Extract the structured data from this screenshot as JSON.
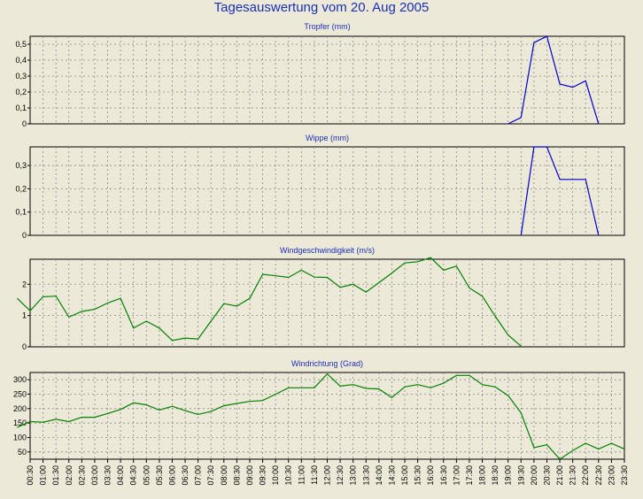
{
  "title": "Tagesauswertung vom 20. Aug 2005",
  "chart_data": [
    {
      "type": "line",
      "title": "Tropfer (mm)",
      "ylim": [
        0,
        0.55
      ],
      "yticks": [
        0,
        0.1,
        0.2,
        0.3,
        0.4,
        0.5
      ],
      "ytick_labels": [
        "0",
        "0,1",
        "0,2",
        "0,3",
        "0,4",
        "0,5"
      ],
      "grid": true,
      "line_color": "#0000CC",
      "series": [
        {
          "points": [
            [
              19.0,
              0
            ],
            [
              19.5,
              0.04
            ],
            [
              20.0,
              0.51
            ],
            [
              20.5,
              0.55
            ],
            [
              21.0,
              0.25
            ],
            [
              21.5,
              0.23
            ],
            [
              22.0,
              0.27
            ],
            [
              22.5,
              0
            ]
          ]
        }
      ]
    },
    {
      "type": "line",
      "title": "Wippe (mm)",
      "ylim": [
        0,
        0.38
      ],
      "yticks": [
        0,
        0.1,
        0.2,
        0.3
      ],
      "ytick_labels": [
        "0",
        "0,1",
        "0,2",
        "0,3"
      ],
      "grid": true,
      "line_color": "#0000CC",
      "series": [
        {
          "points": [
            [
              19.5,
              0
            ],
            [
              20.0,
              0.38
            ],
            [
              20.5,
              0.38
            ],
            [
              21.0,
              0.24
            ],
            [
              21.5,
              0.24
            ],
            [
              22.0,
              0.24
            ],
            [
              22.5,
              0
            ]
          ]
        }
      ]
    },
    {
      "type": "line",
      "title": "Windgeschwindigkeit (m/s)",
      "ylim": [
        0,
        2.8
      ],
      "yticks": [
        0,
        1,
        2
      ],
      "ytick_labels": [
        "0",
        "1",
        "2"
      ],
      "grid": true,
      "line_color": "#008000",
      "series": [
        {
          "points": [
            [
              0.0,
              1.55
            ],
            [
              0.5,
              1.15
            ],
            [
              1.0,
              1.6
            ],
            [
              1.5,
              1.62
            ],
            [
              2.0,
              0.95
            ],
            [
              2.5,
              1.13
            ],
            [
              3.0,
              1.2
            ],
            [
              3.5,
              1.4
            ],
            [
              4.0,
              1.55
            ],
            [
              4.5,
              0.6
            ],
            [
              5.0,
              0.82
            ],
            [
              5.5,
              0.6
            ],
            [
              6.0,
              0.2
            ],
            [
              6.5,
              0.28
            ],
            [
              7.0,
              0.25
            ],
            [
              7.5,
              0.82
            ],
            [
              8.0,
              1.38
            ],
            [
              8.5,
              1.3
            ],
            [
              9.0,
              1.55
            ],
            [
              9.5,
              2.32
            ],
            [
              10.0,
              2.27
            ],
            [
              10.5,
              2.22
            ],
            [
              11.0,
              2.45
            ],
            [
              11.5,
              2.23
            ],
            [
              12.0,
              2.22
            ],
            [
              12.5,
              1.9
            ],
            [
              13.0,
              2.0
            ],
            [
              13.5,
              1.75
            ],
            [
              14.0,
              2.05
            ],
            [
              14.5,
              2.36
            ],
            [
              15.0,
              2.68
            ],
            [
              15.5,
              2.72
            ],
            [
              16.0,
              2.85
            ],
            [
              16.5,
              2.45
            ],
            [
              17.0,
              2.58
            ],
            [
              17.5,
              1.88
            ],
            [
              18.0,
              1.62
            ],
            [
              18.5,
              0.98
            ],
            [
              19.0,
              0.38
            ],
            [
              19.5,
              0.02
            ]
          ]
        }
      ]
    },
    {
      "type": "line",
      "title": "Windrichtung (Grad)",
      "ylim": [
        25,
        325
      ],
      "yticks": [
        50,
        100,
        150,
        200,
        250,
        300
      ],
      "ytick_labels": [
        "50",
        "100",
        "150",
        "200",
        "250",
        "300"
      ],
      "grid": true,
      "line_color": "#008000",
      "series": [
        {
          "points": [
            [
              0.0,
              135
            ],
            [
              0.5,
              155
            ],
            [
              1.0,
              153
            ],
            [
              1.5,
              163
            ],
            [
              2.0,
              155
            ],
            [
              2.5,
              170
            ],
            [
              3.0,
              170
            ],
            [
              3.5,
              183
            ],
            [
              4.0,
              197
            ],
            [
              4.5,
              220
            ],
            [
              5.0,
              213
            ],
            [
              5.5,
              195
            ],
            [
              6.0,
              208
            ],
            [
              6.5,
              193
            ],
            [
              7.0,
              180
            ],
            [
              7.5,
              190
            ],
            [
              8.0,
              210
            ],
            [
              8.5,
              218
            ],
            [
              9.0,
              225
            ],
            [
              9.5,
              228
            ],
            [
              10.0,
              250
            ],
            [
              10.5,
              272
            ],
            [
              11.0,
              272
            ],
            [
              11.5,
              272
            ],
            [
              12.0,
              320
            ],
            [
              12.5,
              278
            ],
            [
              13.0,
              283
            ],
            [
              13.5,
              270
            ],
            [
              14.0,
              268
            ],
            [
              14.5,
              238
            ],
            [
              15.0,
              275
            ],
            [
              15.5,
              283
            ],
            [
              16.0,
              272
            ],
            [
              16.5,
              288
            ],
            [
              17.0,
              315
            ],
            [
              17.5,
              315
            ],
            [
              18.0,
              283
            ],
            [
              18.5,
              275
            ],
            [
              19.0,
              245
            ],
            [
              19.5,
              185
            ],
            [
              20.0,
              65
            ],
            [
              20.5,
              75
            ],
            [
              21.0,
              25
            ],
            [
              21.5,
              55
            ],
            [
              22.0,
              80
            ],
            [
              22.5,
              60
            ],
            [
              23.0,
              80
            ],
            [
              23.5,
              60
            ]
          ]
        }
      ]
    }
  ],
  "x_axis": {
    "tick_labels": [
      "00:30",
      "01:00",
      "01:30",
      "02:00",
      "02:30",
      "03:00",
      "03:30",
      "04:00",
      "04:30",
      "05:00",
      "05:30",
      "06:00",
      "06:30",
      "07:00",
      "07:30",
      "08:00",
      "08:30",
      "09:00",
      "09:30",
      "10:00",
      "10:30",
      "11:00",
      "11:30",
      "12:00",
      "12:30",
      "13:00",
      "13:30",
      "14:00",
      "14:30",
      "15:00",
      "15:30",
      "16:00",
      "16:30",
      "17:00",
      "17:30",
      "18:00",
      "18:30",
      "19:00",
      "19:30",
      "20:00",
      "20:30",
      "21:00",
      "21:30",
      "22:00",
      "22:30",
      "23:00",
      "23:30"
    ]
  }
}
